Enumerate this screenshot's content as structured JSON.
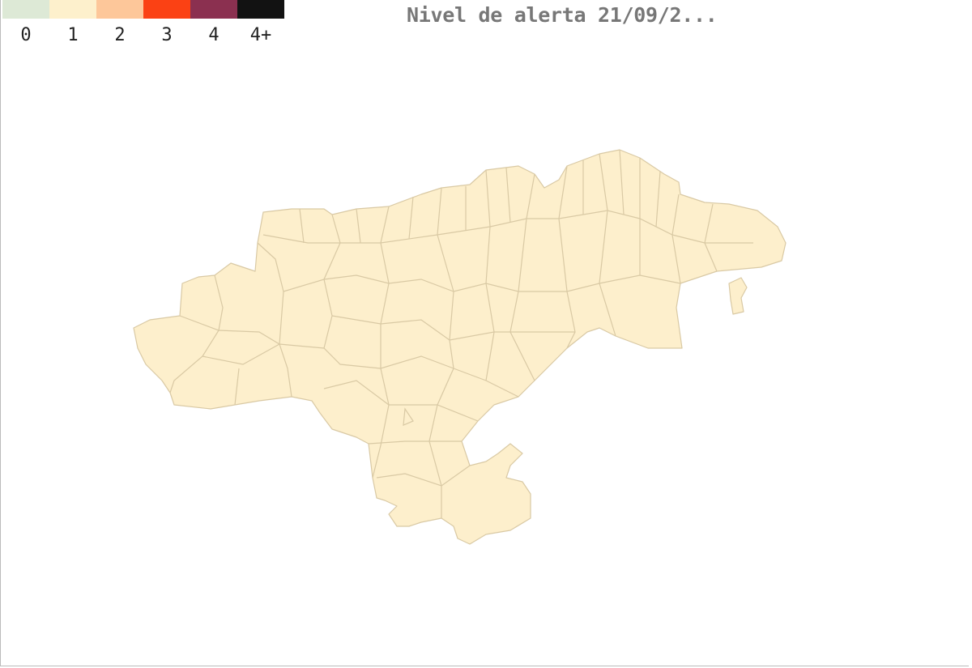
{
  "title": "Nivel de alerta 21/09/2...",
  "legend": [
    {
      "label": "0",
      "color": "#dde9d6"
    },
    {
      "label": "1",
      "color": "#fdf0cc"
    },
    {
      "label": "2",
      "color": "#fdc79a"
    },
    {
      "label": "3",
      "color": "#fb4114"
    },
    {
      "label": "4",
      "color": "#8b3050"
    },
    {
      "label": "4+",
      "color": "#121212"
    }
  ],
  "map": {
    "region_fill": "#fdefcc",
    "border_color": "#d9c9a4",
    "alert_level_all_municipalities": "1"
  }
}
